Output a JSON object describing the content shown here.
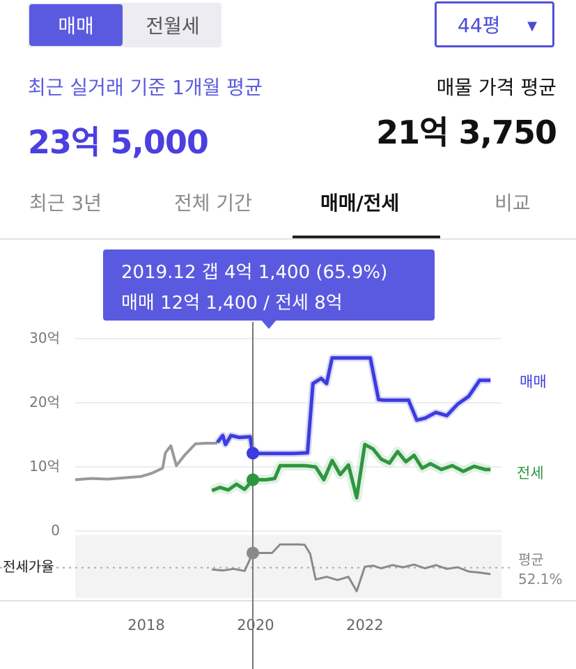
{
  "trade_toggle": {
    "sale_label": "매매",
    "lease_label": "전월세"
  },
  "size_select": {
    "value": "44평"
  },
  "summary": {
    "recent_label": "최근 실거래 기준 1개월 평균",
    "recent_price": "23억 5,000",
    "listing_label": "매물 가격 평균",
    "listing_price": "21억 3,750"
  },
  "tabs": [
    {
      "label": "최근 3년",
      "active": false
    },
    {
      "label": "전체 기간",
      "active": false
    },
    {
      "label": "매매/전세",
      "active": true
    },
    {
      "label": "비교",
      "active": false
    }
  ],
  "tooltip": {
    "line1": "2019.12  갭 4억 1,400 (65.9%)",
    "line2": "매매 12억 1,400 / 전세 8억"
  },
  "chart_data": {
    "type": "line",
    "y_unit": "억",
    "ylim": [
      0,
      30
    ],
    "y_ticks": [
      "30억",
      "20억",
      "10억",
      "0"
    ],
    "xlim": [
      2016.7,
      2024.5
    ],
    "x_ticks": [
      "2018",
      "2020",
      "2022"
    ],
    "cursor_x": 2019.95,
    "colors": {
      "sale": "#3c3ce0",
      "lease": "#2e9640",
      "history": "#999999",
      "ratio": "#8a8a8a"
    },
    "series": [
      {
        "name": "매매",
        "key": "sale",
        "x": [
          2016.7,
          2017.0,
          2017.3,
          2017.6,
          2017.9,
          2018.1,
          2018.3,
          2018.35,
          2018.45,
          2018.55,
          2018.7,
          2018.9,
          2019.1,
          2019.3
        ],
        "values": [
          8.0,
          8.2,
          8.1,
          8.3,
          8.5,
          9.0,
          9.8,
          12.2,
          13.3,
          10.2,
          11.8,
          13.6,
          13.7,
          13.7
        ]
      },
      {
        "name": "매매",
        "key": "sale",
        "x": [
          2019.3,
          2019.4,
          2019.45,
          2019.55,
          2019.7,
          2019.9,
          2019.95,
          2020.3,
          2020.7,
          2020.95,
          2021.05,
          2021.2,
          2021.3,
          2021.4,
          2021.6,
          2021.9,
          2022.1,
          2022.25,
          2022.35,
          2022.5,
          2022.8,
          2022.95,
          2023.1,
          2023.3,
          2023.5,
          2023.7,
          2023.9,
          2024.1,
          2024.3
        ],
        "values": [
          13.8,
          14.9,
          13.5,
          14.9,
          14.6,
          14.7,
          12.1,
          12.1,
          12.1,
          12.2,
          23.0,
          23.8,
          23.0,
          27.0,
          27.0,
          27.0,
          27.0,
          20.5,
          20.4,
          20.4,
          20.4,
          17.3,
          17.6,
          18.5,
          18.0,
          19.8,
          21.0,
          23.5,
          23.5
        ]
      },
      {
        "name": "전세",
        "key": "lease",
        "x": [
          2019.2,
          2019.35,
          2019.5,
          2019.65,
          2019.8,
          2019.95,
          2020.2,
          2020.35,
          2020.45,
          2020.65,
          2020.9,
          2021.1,
          2021.25,
          2021.4,
          2021.55,
          2021.7,
          2021.85,
          2022.0,
          2022.15,
          2022.3,
          2022.45,
          2022.6,
          2022.75,
          2022.9,
          2023.05,
          2023.2,
          2023.4,
          2023.6,
          2023.8,
          2024.0,
          2024.2,
          2024.3
        ],
        "values": [
          6.3,
          6.8,
          6.4,
          7.3,
          6.5,
          8.0,
          8.0,
          8.2,
          10.2,
          10.2,
          10.2,
          10.0,
          8.0,
          11.0,
          8.8,
          10.3,
          5.2,
          13.5,
          12.8,
          11.2,
          10.6,
          12.4,
          10.8,
          11.8,
          9.8,
          10.5,
          9.6,
          10.2,
          9.3,
          10.1,
          9.6,
          9.6
        ]
      }
    ],
    "ratio": {
      "label": "전세가율",
      "avg_label": "평균",
      "avg_value": "52.1%",
      "avg": 52.1,
      "x": [
        2019.2,
        2019.4,
        2019.6,
        2019.8,
        2019.95,
        2020.3,
        2020.45,
        2020.55,
        2020.8,
        2020.9,
        2021.0,
        2021.1,
        2021.3,
        2021.5,
        2021.7,
        2021.85,
        2022.0,
        2022.15,
        2022.3,
        2022.5,
        2022.7,
        2022.9,
        2023.1,
        2023.3,
        2023.5,
        2023.7,
        2023.9,
        2024.1,
        2024.3
      ],
      "values": [
        50.5,
        49.5,
        51.0,
        49.0,
        65.9,
        65.9,
        74.0,
        74.0,
        74.0,
        73.5,
        65.0,
        41.0,
        43.5,
        40.5,
        43.5,
        30.0,
        53.0,
        54.0,
        51.5,
        54.5,
        52.5,
        55.0,
        51.5,
        54.5,
        51.0,
        52.5,
        48.5,
        47.5,
        46.0
      ]
    }
  }
}
